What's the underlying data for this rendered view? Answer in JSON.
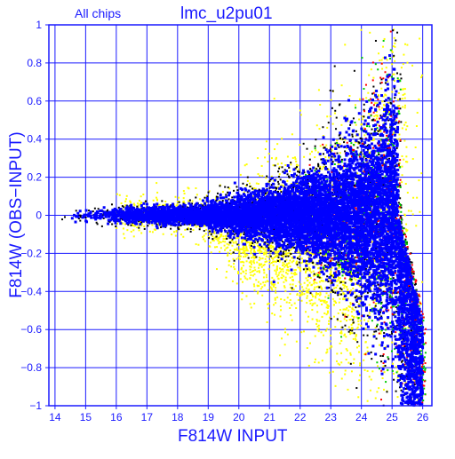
{
  "header": {
    "chips_label": "All chips",
    "title": "lmc_u2pu01"
  },
  "chart_data": {
    "type": "scatter",
    "title": "lmc_u2pu01",
    "subtitle": "All chips",
    "xlabel": "F814W INPUT",
    "ylabel": "F814W (OBS−INPUT)",
    "xlim": [
      13.8,
      26.3
    ],
    "ylim": [
      -1,
      1
    ],
    "x_ticks": [
      14,
      15,
      16,
      17,
      18,
      19,
      20,
      21,
      22,
      23,
      24,
      25,
      26
    ],
    "y_ticks": [
      -1,
      -0.8,
      -0.6,
      -0.4,
      -0.2,
      0,
      0.2,
      0.4,
      0.6,
      0.8,
      1
    ],
    "y_tick_labels": [
      "−1",
      "−0.8",
      "−0.6",
      "−0.4",
      "−0.2",
      "0",
      "0.2",
      "0.4",
      "0.6",
      "0.8",
      "1"
    ],
    "grid": true,
    "colors": {
      "axis": "#1a1aff",
      "title": "#1a1aff",
      "points_main": "#0000ff",
      "points_yellow": "#ffff00",
      "points_black": "#000000",
      "points_red": "#ff0000",
      "points_green": "#00cc00"
    },
    "series": [
      {
        "color": "#ffff00",
        "x": [
          21.5,
          22.0,
          22.3,
          22.8,
          20.8,
          23.2,
          21.0,
          22.5,
          23.6,
          24.2,
          20.2,
          21.8,
          22.9,
          23.9,
          24.5,
          25.0
        ],
        "y": [
          -0.25,
          -0.3,
          -0.2,
          -0.35,
          -0.15,
          -0.4,
          0.2,
          0.35,
          0.5,
          0.7,
          -0.12,
          -0.45,
          -0.6,
          -0.8,
          -0.7,
          -0.9
        ]
      },
      {
        "color": "#000000",
        "x": [
          14.5,
          16.0,
          18.0,
          19.5,
          20.5,
          21.5,
          22.5,
          23.0,
          23.5,
          24.0,
          24.5,
          25.0,
          25.5
        ],
        "y": [
          0.0,
          -0.03,
          -0.05,
          0.06,
          0.1,
          -0.12,
          0.2,
          -0.35,
          0.3,
          0.45,
          -0.55,
          0.6,
          -0.8
        ]
      },
      {
        "color": "#0000ff",
        "x": [
          14.5,
          15.0,
          16.0,
          17.0,
          18.0,
          19.0,
          20.0,
          21.0,
          22.0,
          23.0,
          24.0,
          24.5,
          25.0,
          25.5,
          26.0
        ],
        "y": [
          0.0,
          0.0,
          0.0,
          0.0,
          0.0,
          0.0,
          0.0,
          0.0,
          0.0,
          0.0,
          0.0,
          0.05,
          -0.05,
          -0.3,
          -0.6
        ]
      }
    ]
  }
}
